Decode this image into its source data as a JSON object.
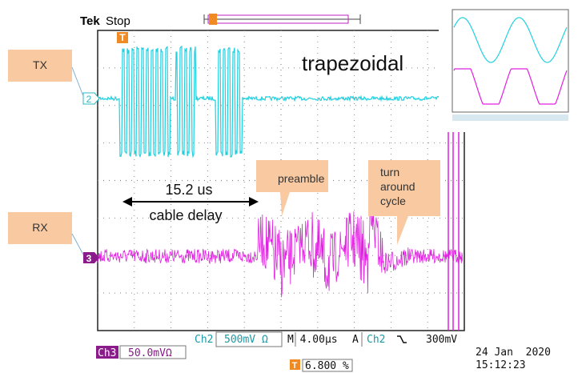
{
  "header": {
    "brand": "Tek",
    "status": "Stop"
  },
  "callouts": {
    "tx": "TX",
    "rx": "RX",
    "waveform": "trapezoidal",
    "delay_value": "15.2 us",
    "delay_label": "cable delay",
    "preamble": "preamble",
    "turnaround": [
      "turn",
      "around",
      "cycle"
    ]
  },
  "channel_markers": {
    "ch2": "2",
    "ch3": "3"
  },
  "trigger_marker": "T",
  "readout": {
    "ch2_label": "Ch2",
    "ch2_scale": "500mV Ω",
    "timebase": "M 4.00µs",
    "trigger_mode": "A",
    "trigger_source": "Ch2",
    "trigger_level": "300mV",
    "ch3_label": "Ch3",
    "ch3_scale": "50.0mVΩ",
    "trigger_position": "6.800 %",
    "date": "24 Jan  2020",
    "time": "15:12:23"
  }
}
